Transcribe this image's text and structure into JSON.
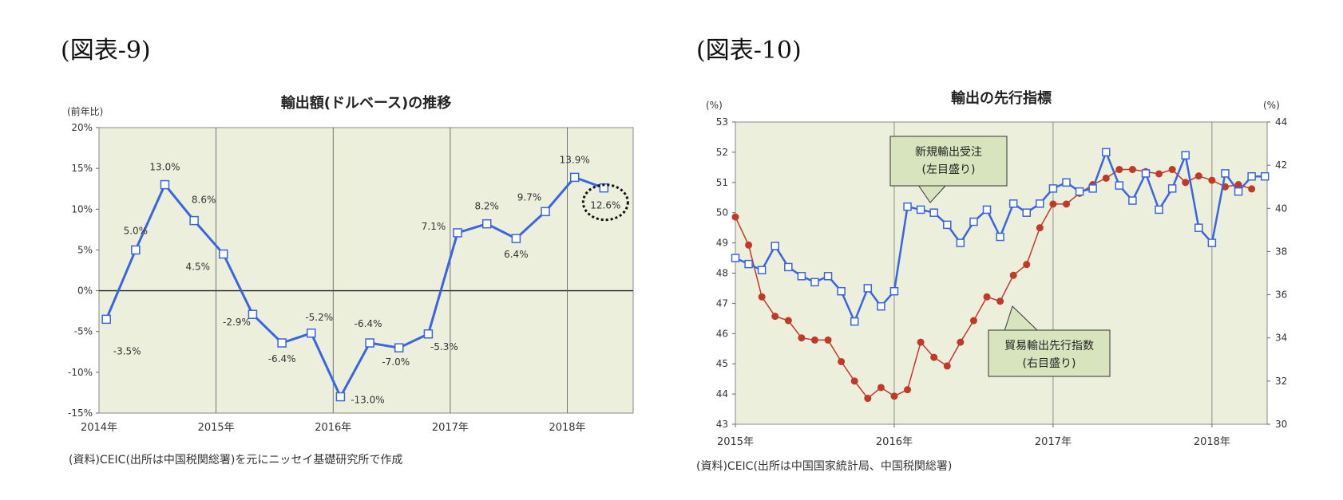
{
  "figures": [
    {
      "label": "(図表-9)",
      "source": "(資料)CEIC(出所は中国税関総署)を元にニッセイ基礎研究所で作成"
    },
    {
      "label": "(図表-10)",
      "source": "(資料)CEIC(出所は中国国家統計局、中国税関総署)"
    }
  ],
  "chart_data": [
    {
      "type": "line",
      "title": "輸出額(ドルベース)の推移",
      "ylabel": "(前年比)",
      "ylim": [
        -15,
        20
      ],
      "y_ticks": [
        -15,
        -10,
        -5,
        0,
        5,
        10,
        15,
        20
      ],
      "y_tick_labels": [
        "-15%",
        "-10%",
        "-5%",
        "0%",
        "5%",
        "10%",
        "15%",
        "20%"
      ],
      "x_ticks": [
        2014,
        2015,
        2016,
        2017,
        2018
      ],
      "x_tick_labels": [
        "2014年",
        "2015年",
        "2016年",
        "2017年",
        "2018年"
      ],
      "grid": "vertical-yearly",
      "color": "#3b64e0",
      "series": [
        {
          "x": [
            "2014-Q1",
            "2014-Q2",
            "2014-Q3",
            "2014-Q4",
            "2015-Q1",
            "2015-Q2",
            "2015-Q3",
            "2015-Q4",
            "2016-Q1",
            "2016-Q2",
            "2016-Q3",
            "2016-Q4",
            "2017-Q1",
            "2017-Q2",
            "2017-Q3",
            "2017-Q4",
            "2018-Q1",
            "2018-Q2"
          ],
          "values": [
            -3.5,
            5.0,
            13.0,
            8.6,
            4.5,
            -2.9,
            -6.4,
            -5.2,
            -13.0,
            -6.4,
            -7.0,
            -5.3,
            7.1,
            8.2,
            6.4,
            9.7,
            13.9,
            12.6
          ],
          "labels": [
            "-3.5%",
            "5.0%",
            "13.0%",
            "8.6%",
            "4.5%",
            "-2.9%",
            "-6.4%",
            "-5.2%",
            "-13.0%",
            "-6.4%",
            "-7.0%",
            "-5.3%",
            "7.1%",
            "8.2%",
            "6.4%",
            "9.7%",
            "13.9%",
            "12.6%"
          ]
        }
      ],
      "highlight_last": true
    },
    {
      "type": "line",
      "title": "輸出の先行指標",
      "ylabel": "(%)",
      "y2label": "(%)",
      "ylim": [
        43,
        53
      ],
      "y2lim": [
        30,
        44
      ],
      "y_ticks": [
        43,
        44,
        45,
        46,
        47,
        48,
        49,
        50,
        51,
        52,
        53
      ],
      "y2_ticks": [
        30,
        32,
        34,
        36,
        38,
        40,
        42,
        44
      ],
      "x_tick_labels": [
        "2015年",
        "2016年",
        "2017年",
        "2018年"
      ],
      "grid": "vertical-yearly",
      "series": [
        {
          "name": "新規輸出受注",
          "name2": "(左目盛り)",
          "axis": "left",
          "color": "#3b64e0",
          "x": [
            "2015-01",
            "2015-02",
            "2015-03",
            "2015-04",
            "2015-05",
            "2015-06",
            "2015-07",
            "2015-08",
            "2015-09",
            "2015-10",
            "2015-11",
            "2015-12",
            "2016-01",
            "2016-02",
            "2016-03",
            "2016-04",
            "2016-05",
            "2016-06",
            "2016-07",
            "2016-08",
            "2016-09",
            "2016-10",
            "2016-11",
            "2016-12",
            "2017-01",
            "2017-02",
            "2017-03",
            "2017-04",
            "2017-05",
            "2017-06",
            "2017-07",
            "2017-08",
            "2017-09",
            "2017-10",
            "2017-11",
            "2017-12",
            "2018-01",
            "2018-02",
            "2018-03",
            "2018-04",
            "2018-05"
          ],
          "values": [
            48.5,
            48.3,
            48.1,
            48.9,
            48.2,
            47.9,
            47.7,
            47.9,
            47.4,
            46.4,
            47.5,
            46.9,
            47.4,
            50.2,
            50.1,
            50.0,
            49.6,
            49.0,
            49.7,
            50.1,
            49.2,
            50.3,
            50.0,
            50.3,
            50.8,
            51.0,
            50.7,
            50.8,
            52.0,
            50.9,
            50.4,
            51.3,
            50.1,
            50.8,
            51.9,
            49.5,
            49.0,
            51.3,
            50.7,
            51.2,
            51.2
          ]
        },
        {
          "name": "貿易輸出先行指数",
          "name2": "(右目盛り)",
          "axis": "right",
          "color": "#c0392b",
          "x": [
            "2015-01",
            "2015-02",
            "2015-03",
            "2015-04",
            "2015-05",
            "2015-06",
            "2015-07",
            "2015-08",
            "2015-09",
            "2015-10",
            "2015-11",
            "2015-12",
            "2016-01",
            "2016-02",
            "2016-03",
            "2016-04",
            "2016-05",
            "2016-06",
            "2016-07",
            "2016-08",
            "2016-09",
            "2016-10",
            "2016-11",
            "2016-12",
            "2017-01",
            "2017-02",
            "2017-03",
            "2017-04",
            "2017-05",
            "2017-06",
            "2017-07",
            "2017-08",
            "2017-09",
            "2017-10",
            "2017-11",
            "2017-12",
            "2018-01",
            "2018-02",
            "2018-03",
            "2018-04"
          ],
          "values": [
            39.6,
            38.3,
            35.9,
            35.0,
            34.8,
            34.0,
            33.9,
            33.9,
            32.9,
            32.0,
            31.2,
            31.7,
            31.3,
            31.6,
            33.8,
            33.1,
            32.7,
            33.8,
            34.8,
            35.9,
            35.7,
            36.9,
            37.4,
            39.1,
            40.2,
            40.2,
            40.7,
            41.1,
            41.4,
            41.8,
            41.8,
            41.7,
            41.6,
            41.8,
            41.2,
            41.5,
            41.3,
            41.0,
            41.1,
            40.9
          ]
        }
      ]
    }
  ]
}
